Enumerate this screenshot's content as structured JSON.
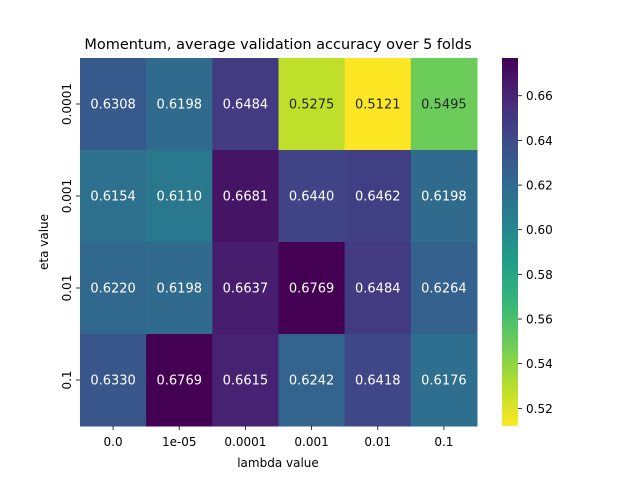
{
  "chart_data": {
    "type": "heatmap",
    "title": "Momentum, average validation accuracy over 5 folds",
    "xlabel": "lambda value",
    "ylabel": "eta value",
    "x_categories": [
      "0.0",
      "1e-05",
      "0.0001",
      "0.001",
      "0.01",
      "0.1"
    ],
    "y_categories": [
      "0.0001",
      "0.001",
      "0.01",
      "0.1"
    ],
    "values": [
      [
        0.6308,
        0.6198,
        0.6484,
        0.5275,
        0.5121,
        0.5495
      ],
      [
        0.6154,
        0.611,
        0.6681,
        0.644,
        0.6462,
        0.6198
      ],
      [
        0.622,
        0.6198,
        0.6637,
        0.6769,
        0.6484,
        0.6264
      ],
      [
        0.633,
        0.6769,
        0.6615,
        0.6242,
        0.6418,
        0.6176
      ]
    ],
    "value_labels": [
      [
        "0.6308",
        "0.6198",
        "0.6484",
        "0.5275",
        "0.5121",
        "0.5495"
      ],
      [
        "0.6154",
        "0.6110",
        "0.6681",
        "0.6440",
        "0.6462",
        "0.6198"
      ],
      [
        "0.6220",
        "0.6198",
        "0.6637",
        "0.6769",
        "0.6484",
        "0.6264"
      ],
      [
        "0.6330",
        "0.6769",
        "0.6615",
        "0.6242",
        "0.6418",
        "0.6176"
      ]
    ],
    "colormap": "viridis_r",
    "vmin": 0.5121,
    "vmax": 0.6769,
    "colorbar_ticks": [
      0.52,
      0.54,
      0.56,
      0.58,
      0.6,
      0.62,
      0.64,
      0.66
    ],
    "colorbar_tick_labels": [
      "0.52",
      "0.54",
      "0.56",
      "0.58",
      "0.60",
      "0.62",
      "0.64",
      "0.66"
    ],
    "grid": false
  }
}
